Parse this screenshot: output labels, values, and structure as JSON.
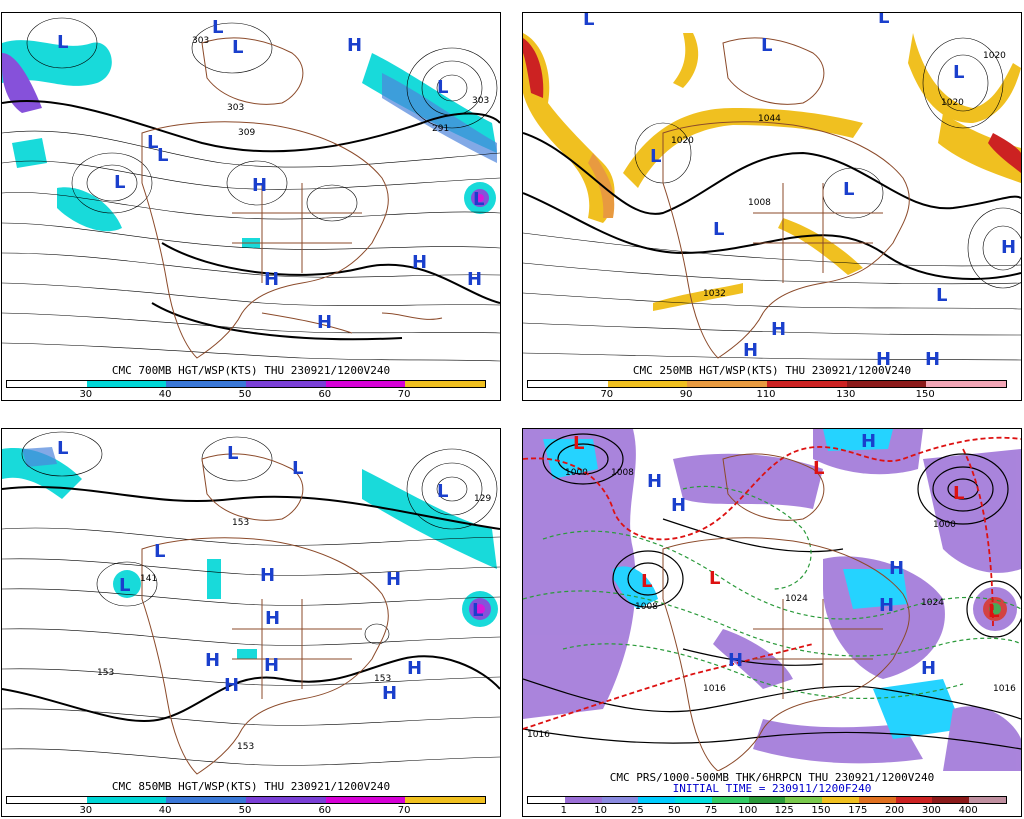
{
  "panels": [
    {
      "id": "p700",
      "caption": "CMC 700MB HGT/WSP(KTS) THU 230921/1200V240",
      "colorbar": {
        "colors": [
          "#ffffff",
          "#00d6d6",
          "#3a78d8",
          "#7a3fd6",
          "#d600d6",
          "#f0c020"
        ],
        "ticks": [
          "30",
          "40",
          "50",
          "60",
          "70"
        ]
      },
      "highs": [
        "H",
        "H",
        "H",
        "H",
        "H",
        "H"
      ],
      "lows": [
        "L",
        "L",
        "L",
        "L",
        "L",
        "L",
        "L",
        "L"
      ],
      "contour_labels": [
        "303",
        "309",
        "303",
        "291",
        "303"
      ]
    },
    {
      "id": "p250",
      "caption": "CMC 250MB HGT/WSP(KTS) THU 230921/1200V240",
      "colorbar": {
        "colors": [
          "#ffffff",
          "#f0c020",
          "#e89a40",
          "#cc2222",
          "#8b1a1a",
          "#f3a7b7"
        ],
        "ticks": [
          "70",
          "90",
          "110",
          "130",
          "150"
        ]
      },
      "highs": [
        "H",
        "H",
        "H",
        "H",
        "H"
      ],
      "lows": [
        "L",
        "L",
        "L",
        "L",
        "L",
        "L",
        "L",
        "L"
      ],
      "contour_labels": [
        "1044",
        "1020",
        "1008",
        "1020",
        "1032",
        "1020"
      ]
    },
    {
      "id": "p850",
      "caption": "CMC 850MB HGT/WSP(KTS) THU 230921/1200V240",
      "colorbar": {
        "colors": [
          "#ffffff",
          "#00d6d6",
          "#3a78d8",
          "#7a3fd6",
          "#d600d6",
          "#f0c020"
        ],
        "ticks": [
          "30",
          "40",
          "50",
          "60",
          "70"
        ]
      },
      "highs": [
        "H",
        "H",
        "H",
        "H",
        "H",
        "H",
        "H"
      ],
      "lows": [
        "L",
        "L",
        "L",
        "L",
        "L",
        "L",
        "L"
      ],
      "contour_labels": [
        "153",
        "141",
        "153",
        "153",
        "153",
        "129"
      ]
    },
    {
      "id": "pprs",
      "caption": "CMC PRS/1000-500MB THK/6HRPCN THU 230921/1200V240",
      "caption2": "INITIAL TIME = 230911/1200F240",
      "colorbar": {
        "colors": [
          "#ffffff",
          "#9b6fd6",
          "#8a8ae0",
          "#00ccff",
          "#00e0e0",
          "#33cc66",
          "#2a9a3a",
          "#7ac94c",
          "#f0c020",
          "#e07020",
          "#cc2222",
          "#8b1a1a",
          "#c090a0"
        ],
        "ticks": [
          "1",
          "10",
          "25",
          "50",
          "75",
          "100",
          "125",
          "150",
          "175",
          "200",
          "300",
          "400"
        ]
      },
      "highs": [
        "H",
        "H",
        "H",
        "H",
        "H",
        "H",
        "H"
      ],
      "lows": [
        "L",
        "L",
        "L",
        "L",
        "L",
        "L"
      ],
      "contour_labels": [
        "1000",
        "1008",
        "1016",
        "1024",
        "1016",
        "1008",
        "1024",
        "1016",
        "1000"
      ]
    }
  ]
}
